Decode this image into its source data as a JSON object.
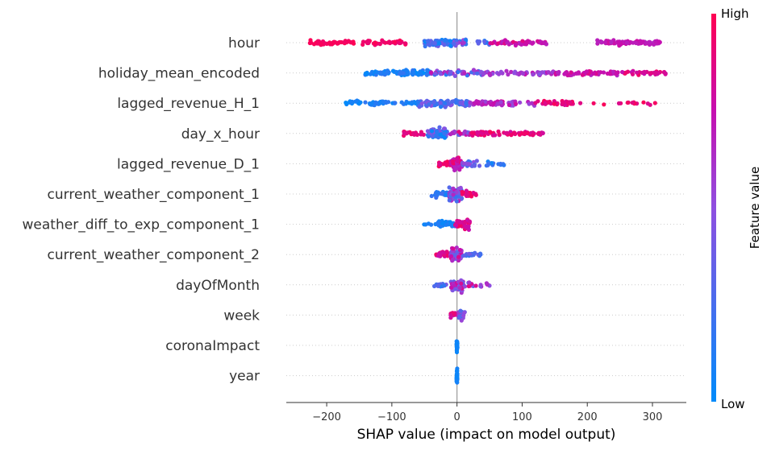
{
  "chart_data": {
    "type": "scatter",
    "subtype": "shap-beeswarm",
    "xlabel": "SHAP value (impact on model output)",
    "xlim": [
      -262,
      352
    ],
    "xticks": [
      -200,
      -100,
      0,
      100,
      200,
      300
    ],
    "tick_labels": [
      "−200",
      "−100",
      "0",
      "100",
      "200",
      "300"
    ],
    "colorbar": {
      "title": "Feature value",
      "high_label": "High",
      "low_label": "Low",
      "low_color": "#008bfb",
      "high_color": "#ff0052"
    },
    "features": [
      {
        "name": "hour",
        "clusters": [
          {
            "x0": -232,
            "x1": -158,
            "n": 48,
            "v": 0.97,
            "dv": 0.03
          },
          {
            "x0": -150,
            "x1": -132,
            "n": 8,
            "v": 0.95,
            "dv": 0.05
          },
          {
            "x0": -128,
            "x1": -78,
            "n": 28,
            "v": 0.95,
            "dv": 0.05
          },
          {
            "x0": -50,
            "x1": -5,
            "n": 70,
            "v": 0.22,
            "dv": 0.2
          },
          {
            "x0": -5,
            "x1": 15,
            "n": 20,
            "v": 0.35,
            "dv": 0.3
          },
          {
            "x0": 30,
            "x1": 50,
            "n": 10,
            "v": 0.2,
            "dv": 0.15
          },
          {
            "x0": 50,
            "x1": 70,
            "n": 10,
            "v": 0.85,
            "dv": 0.12
          },
          {
            "x0": 70,
            "x1": 140,
            "n": 40,
            "v": 0.78,
            "dv": 0.12
          },
          {
            "x0": 215,
            "x1": 312,
            "n": 70,
            "v": 0.72,
            "dv": 0.08
          }
        ]
      },
      {
        "name": "holiday_mean_encoded",
        "clusters": [
          {
            "x0": -142,
            "x1": -40,
            "n": 85,
            "v": 0.1,
            "dv": 0.1
          },
          {
            "x0": -40,
            "x1": 40,
            "n": 60,
            "v": 0.45,
            "dv": 0.3
          },
          {
            "x0": 40,
            "x1": 150,
            "n": 55,
            "v": 0.6,
            "dv": 0.15
          },
          {
            "x0": 150,
            "x1": 250,
            "n": 60,
            "v": 0.75,
            "dv": 0.1
          },
          {
            "x0": 250,
            "x1": 322,
            "n": 35,
            "v": 0.85,
            "dv": 0.12
          }
        ]
      },
      {
        "name": "lagged_revenue_H_1",
        "clusters": [
          {
            "x0": -172,
            "x1": -148,
            "n": 18,
            "v": 0.05,
            "dv": 0.05
          },
          {
            "x0": -148,
            "x1": -60,
            "n": 40,
            "v": 0.1,
            "dv": 0.08
          },
          {
            "x0": -60,
            "x1": 20,
            "n": 90,
            "v": 0.3,
            "dv": 0.2
          },
          {
            "x0": 20,
            "x1": 120,
            "n": 55,
            "v": 0.65,
            "dv": 0.15
          },
          {
            "x0": 120,
            "x1": 180,
            "n": 30,
            "v": 0.9,
            "dv": 0.08
          },
          {
            "x0": 180,
            "x1": 312,
            "n": 15,
            "v": 0.92,
            "dv": 0.08
          }
        ]
      },
      {
        "name": "day_x_hour",
        "clusters": [
          {
            "x0": -82,
            "x1": -45,
            "n": 22,
            "v": 0.92,
            "dv": 0.08
          },
          {
            "x0": -45,
            "x1": -15,
            "n": 70,
            "v": 0.25,
            "dv": 0.25
          },
          {
            "x0": -15,
            "x1": 20,
            "n": 20,
            "v": 0.6,
            "dv": 0.3
          },
          {
            "x0": 20,
            "x1": 132,
            "n": 75,
            "v": 0.88,
            "dv": 0.1
          }
        ]
      },
      {
        "name": "lagged_revenue_D_1",
        "clusters": [
          {
            "x0": -28,
            "x1": -8,
            "n": 25,
            "v": 0.9,
            "dv": 0.1
          },
          {
            "x0": -8,
            "x1": 8,
            "n": 55,
            "v": 0.8,
            "dv": 0.15
          },
          {
            "x0": 8,
            "x1": 40,
            "n": 30,
            "v": 0.35,
            "dv": 0.2
          },
          {
            "x0": 40,
            "x1": 73,
            "n": 15,
            "v": 0.15,
            "dv": 0.1
          }
        ]
      },
      {
        "name": "current_weather_component_1",
        "clusters": [
          {
            "x0": -40,
            "x1": -12,
            "n": 25,
            "v": 0.15,
            "dv": 0.1
          },
          {
            "x0": -12,
            "x1": 8,
            "n": 70,
            "v": 0.45,
            "dv": 0.3
          },
          {
            "x0": 8,
            "x1": 30,
            "n": 25,
            "v": 0.88,
            "dv": 0.1
          }
        ]
      },
      {
        "name": "weather_diff_to_exp_component_1",
        "clusters": [
          {
            "x0": -52,
            "x1": -30,
            "n": 5,
            "v": 0.08,
            "dv": 0.06
          },
          {
            "x0": -30,
            "x1": -3,
            "n": 35,
            "v": 0.1,
            "dv": 0.08
          },
          {
            "x0": -3,
            "x1": 20,
            "n": 45,
            "v": 0.85,
            "dv": 0.12
          }
        ]
      },
      {
        "name": "current_weather_component_2",
        "clusters": [
          {
            "x0": -35,
            "x1": -10,
            "n": 22,
            "v": 0.85,
            "dv": 0.12
          },
          {
            "x0": -10,
            "x1": 8,
            "n": 65,
            "v": 0.6,
            "dv": 0.3
          },
          {
            "x0": 8,
            "x1": 38,
            "n": 20,
            "v": 0.25,
            "dv": 0.15
          }
        ]
      },
      {
        "name": "dayOfMonth",
        "clusters": [
          {
            "x0": -35,
            "x1": -10,
            "n": 15,
            "v": 0.3,
            "dv": 0.2
          },
          {
            "x0": -10,
            "x1": 10,
            "n": 55,
            "v": 0.6,
            "dv": 0.3
          },
          {
            "x0": 10,
            "x1": 50,
            "n": 20,
            "v": 0.6,
            "dv": 0.3
          }
        ]
      },
      {
        "name": "week",
        "clusters": [
          {
            "x0": -10,
            "x1": 2,
            "n": 15,
            "v": 0.8,
            "dv": 0.15
          },
          {
            "x0": 2,
            "x1": 12,
            "n": 20,
            "v": 0.35,
            "dv": 0.25
          }
        ]
      },
      {
        "name": "coronaImpact",
        "clusters": [
          {
            "x0": -0.6,
            "x1": 0.6,
            "n": 30,
            "v": 0.05,
            "dv": 0.03
          }
        ]
      },
      {
        "name": "year",
        "clusters": [
          {
            "x0": -0.6,
            "x1": 0.6,
            "n": 30,
            "v": 0.05,
            "dv": 0.03
          }
        ]
      }
    ]
  }
}
